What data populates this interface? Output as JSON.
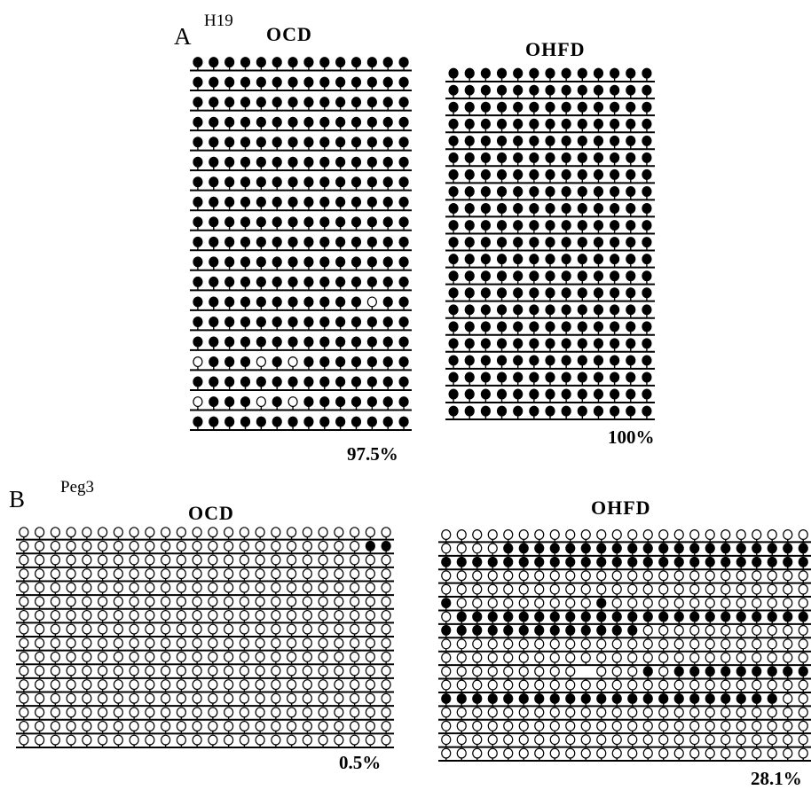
{
  "panel_a": {
    "letter": "A",
    "gene": "H19",
    "ocd": {
      "label": "OCD",
      "percent": "97.5%",
      "cpg_count": 14,
      "rows": [
        "11111111111111",
        "11111111111111",
        "11111111111111",
        "11111111111111",
        "11111111111111",
        "11111111111111",
        "11111111111111",
        "11111111111111",
        "11111111111111",
        "11111111111111",
        "11111111111111",
        "11111111111111",
        "11111111111011",
        "11111111111111",
        "11111111111111",
        "01110101111111",
        "11111111111111",
        "01110101111111",
        "11111111111111"
      ]
    },
    "ohfd": {
      "label": "OHFD",
      "percent": "100%",
      "cpg_count": 13,
      "rows": [
        "1111111111111",
        "1111111111111",
        "1111111111111",
        "1111111111111",
        "1111111111111",
        "1111111111111",
        "1111111111111",
        "1111111111111",
        "1111111111111",
        "1111111111111",
        "1111111111111",
        "1111111111111",
        "1111111111111",
        "1111111111111",
        "1111111111111",
        "1111111111111",
        "1111111111111",
        "1111111111111",
        "1111111111111",
        "1111111111111",
        "1111111111111"
      ]
    }
  },
  "panel_b": {
    "letter": "B",
    "gene": "Peg3",
    "ocd": {
      "label": "OCD",
      "percent": "0.5%",
      "cpg_count": 24,
      "rows": [
        "000000000000000000000000",
        "000000000000000000000011",
        "000000000000000000000000",
        "000000000000000000000000",
        "000000000000000000000000",
        "000000000000000000000000",
        "000000000000000000000000",
        "000000000000000000000000",
        "000000000000000000000000",
        "000000000000000000000000",
        "000000000000000000000000",
        "000000000000000000000000",
        "000000000000000000000000",
        "000000000000000000000000",
        "000000000000000000000000",
        "000000000000000000000000"
      ]
    },
    "ohfd": {
      "label": "OHFD",
      "percent": "28.1%",
      "cpg_count": 24,
      "rows": [
        "000000000000000000000000",
        "000011111111111111111111",
        "111111111111111111111111",
        "000000000000000000000000",
        "000000000000000000000000",
        "100000000010000000000000",
        "011111111111111111111111",
        "111111111111100000000000",
        "000000000000000000000000",
        "000000000000000000000000",
        "000000000-00010111111111",
        "000000000000000000000000",
        "111111111111111111111100",
        "000000000000000000000000",
        "000000000000000000000000",
        "000000000000000000000000",
        "000000000000000000000000"
      ]
    }
  },
  "colors": {
    "ink": "#000000",
    "paper": "#ffffff"
  }
}
